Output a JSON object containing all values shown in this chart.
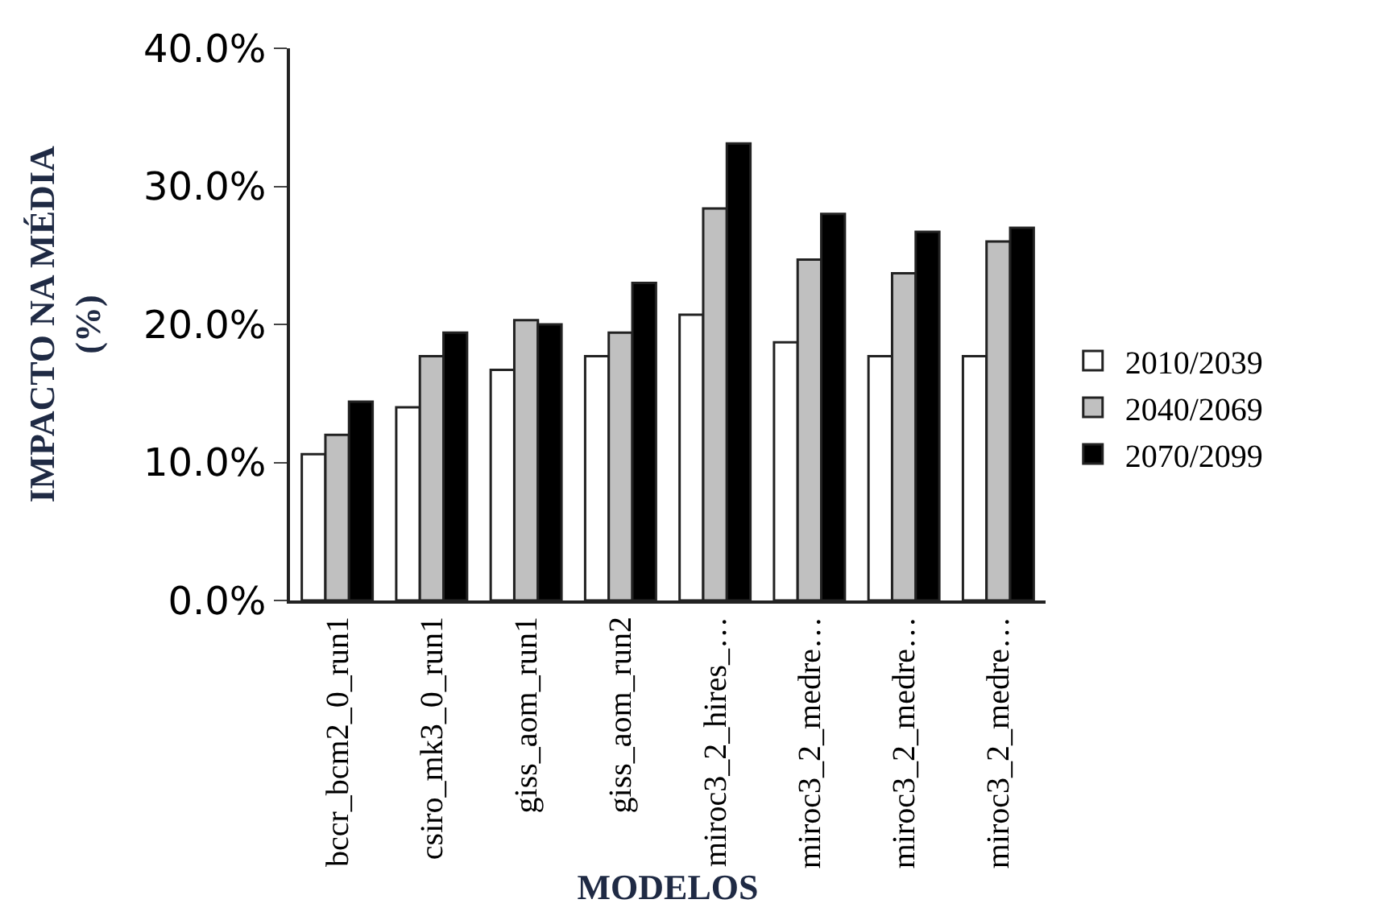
{
  "chart_data": {
    "type": "bar",
    "xlabel": "MODELOS",
    "ylabel": "IMPACTO NA MÉDIA\n(%)",
    "categories": [
      "bccr_bcm2_0_run1",
      "csiro_mk3_0_run1",
      "giss_aom_run1",
      "giss_aom_run2",
      "miroc3_2_hires_…",
      "miroc3_2_medre…",
      "miroc3_2_medre…",
      "miroc3_2_medre…"
    ],
    "series": [
      {
        "name": "2010/2039",
        "color": "#ffffff",
        "values": [
          10.6,
          14.0,
          16.7,
          17.7,
          20.7,
          18.7,
          17.7,
          17.7
        ]
      },
      {
        "name": "2040/2069",
        "color": "#c0c0c0",
        "values": [
          12.0,
          17.7,
          20.3,
          19.4,
          28.4,
          24.7,
          23.7,
          26.0
        ]
      },
      {
        "name": "2070/2099",
        "color": "#000000",
        "values": [
          14.4,
          19.4,
          20.0,
          23.0,
          33.1,
          28.0,
          26.7,
          27.0
        ]
      }
    ],
    "ylim": [
      0,
      40
    ],
    "yticks": [
      {
        "value": 0,
        "label": "0.0%"
      },
      {
        "value": 10,
        "label": "10.0%"
      },
      {
        "value": 20,
        "label": "20.0%"
      },
      {
        "value": 30,
        "label": "30.0%"
      },
      {
        "value": 40,
        "label": "40.0%"
      }
    ],
    "legend": "right"
  }
}
